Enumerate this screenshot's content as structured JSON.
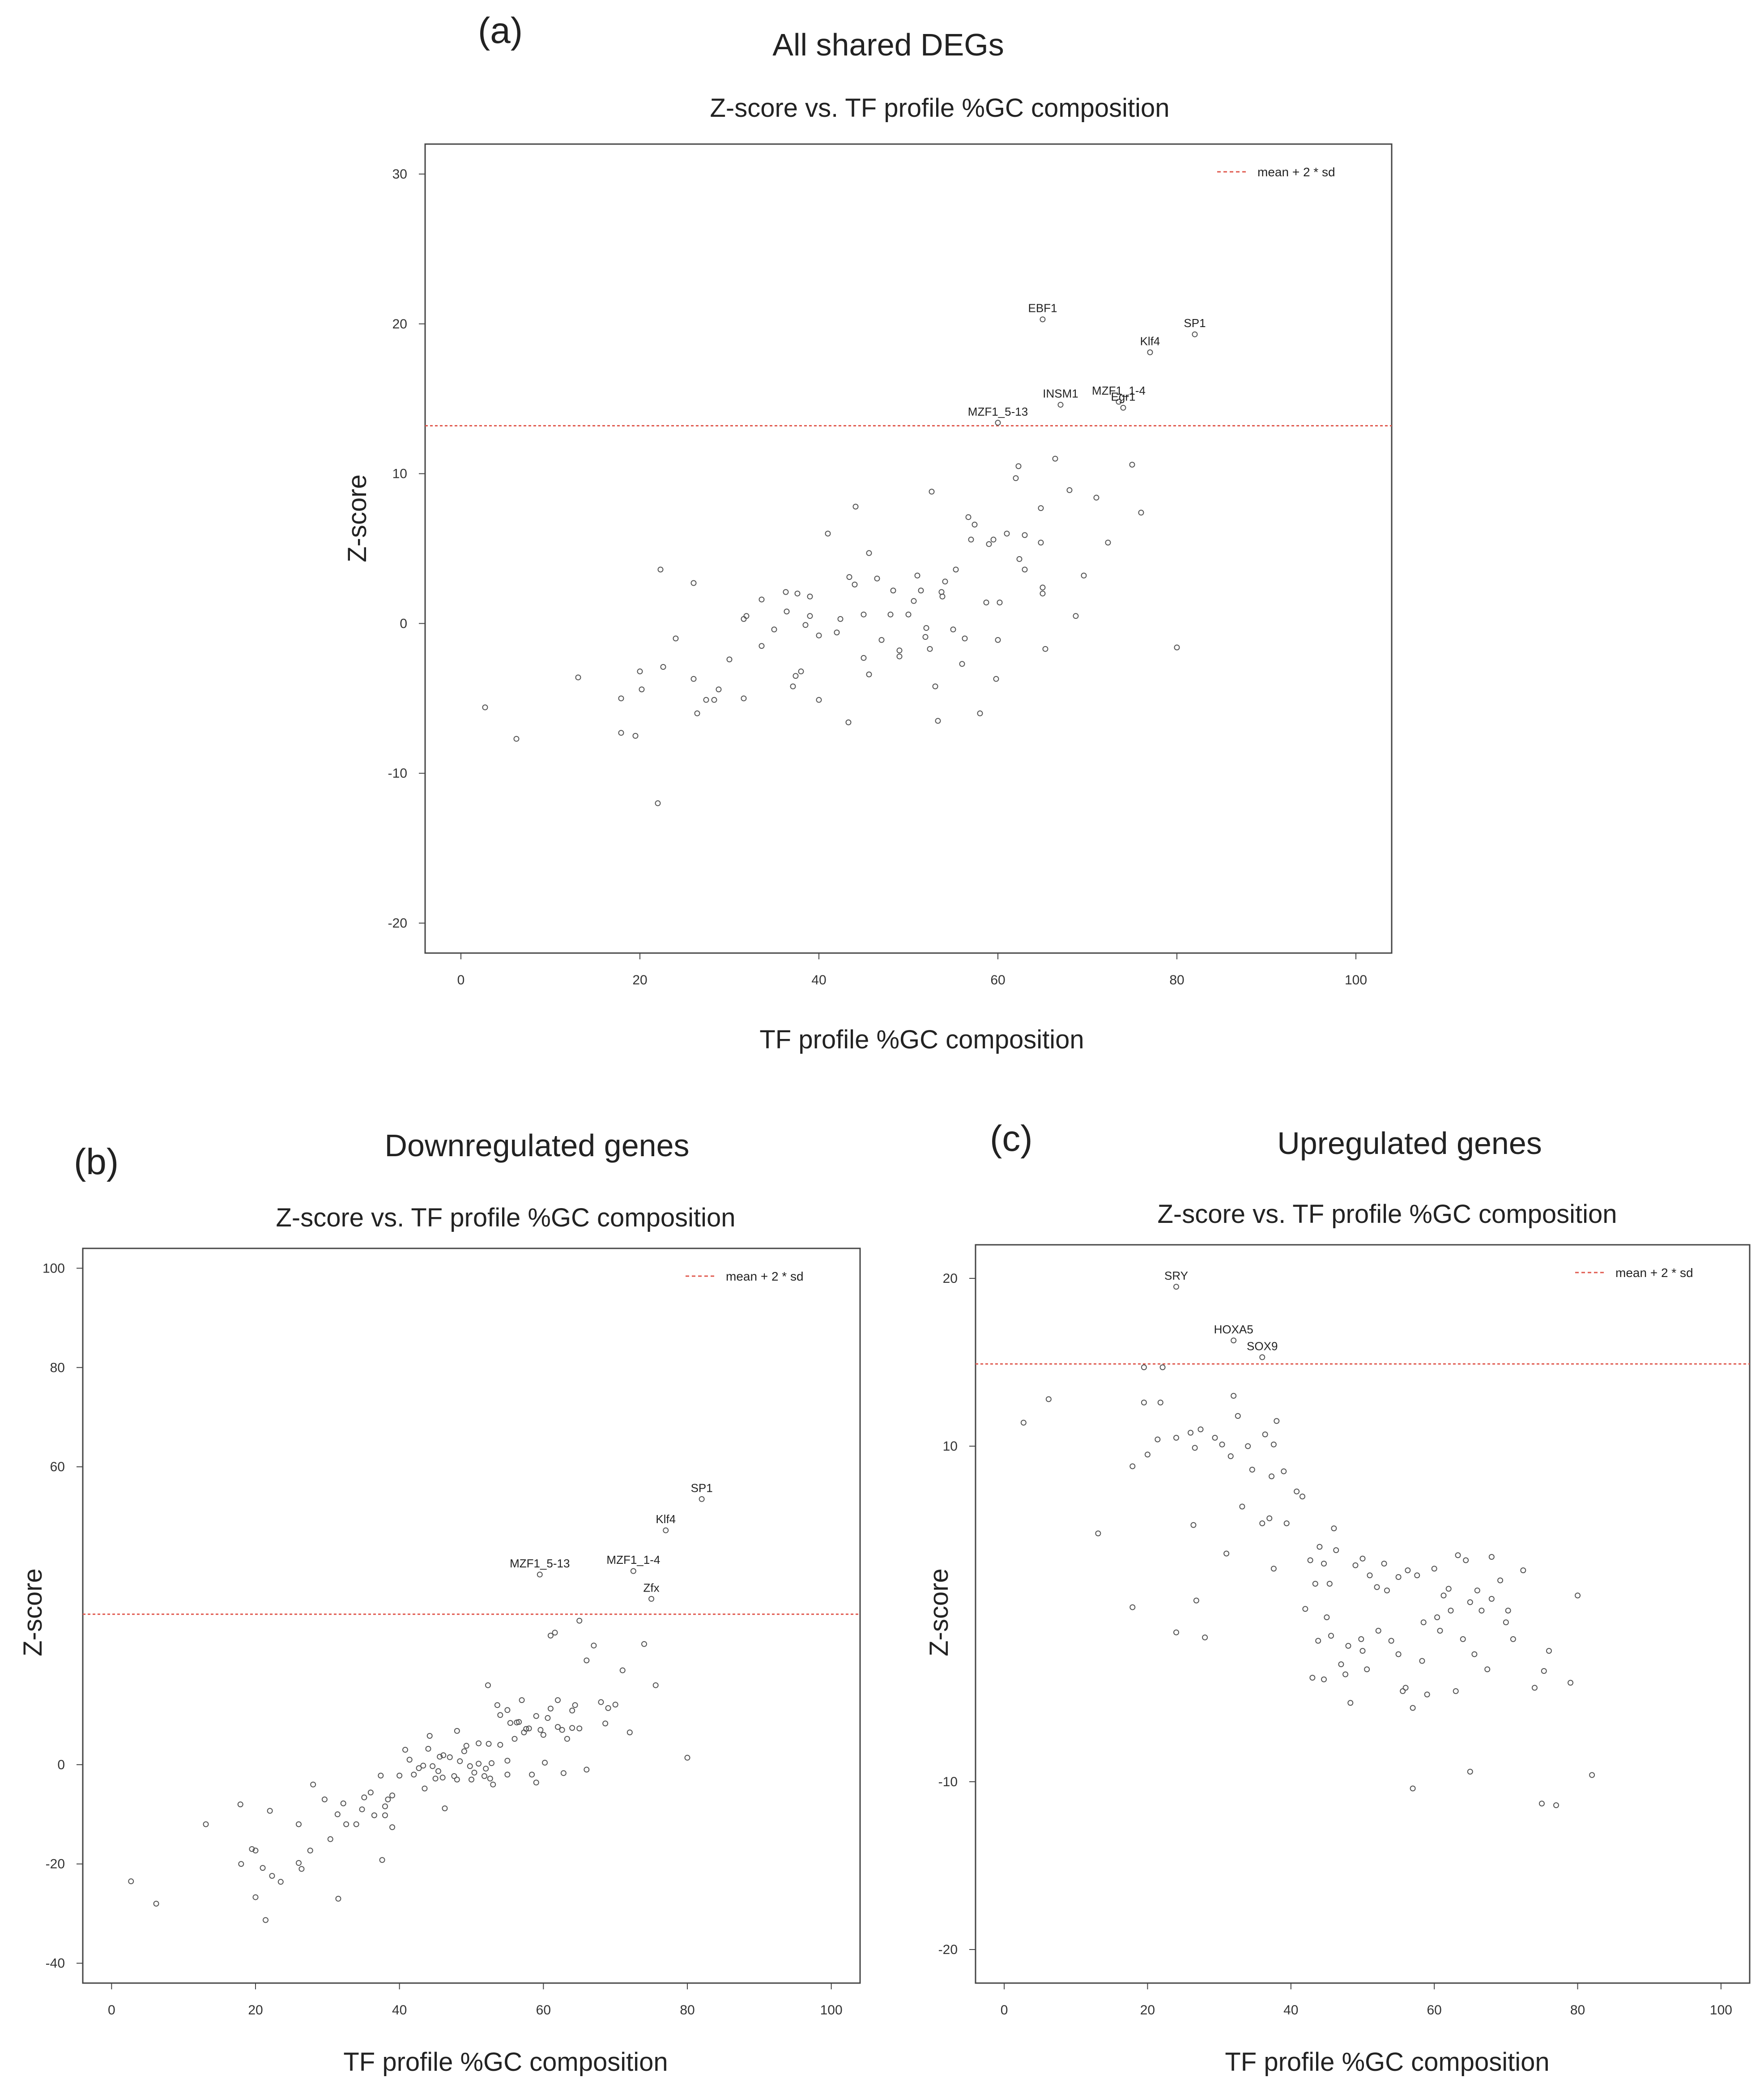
{
  "figure": {
    "panel_a": {
      "letter": "(a)",
      "title": "All shared DEGs"
    },
    "panel_b": {
      "letter": "(b)",
      "title": "Downregulated genes"
    },
    "panel_c": {
      "letter": "(c)",
      "title": "Upregulated genes"
    }
  },
  "colors": {
    "threshold": "#e05a4f",
    "points": "#555555",
    "frame": "#444444"
  },
  "chart_data": [
    {
      "type": "scatter",
      "title": "Z-score vs. TF profile %GC composition",
      "xlabel": "TF profile %GC composition",
      "ylabel": "Z-score",
      "xlim": [
        -4,
        104
      ],
      "ylim": [
        -22,
        32
      ],
      "xticks": [
        0,
        20,
        40,
        60,
        80,
        100
      ],
      "yticks": [
        -20,
        -10,
        0,
        10,
        20,
        30
      ],
      "threshold": 13.2,
      "legend": "mean + 2 * sd",
      "legend_position": "top-right",
      "labeled_points": [
        {
          "label": "EBF1",
          "x": 65,
          "y": 20.3
        },
        {
          "label": "SP1",
          "x": 82,
          "y": 19.3
        },
        {
          "label": "Klf4",
          "x": 77,
          "y": 18.1
        },
        {
          "label": "INSM1",
          "x": 67,
          "y": 14.6
        },
        {
          "label": "MZF1_1-4",
          "x": 73.5,
          "y": 14.8
        },
        {
          "label": "Egr1",
          "x": 74,
          "y": 14.4
        },
        {
          "label": "MZF1_5-13",
          "x": 60,
          "y": 13.4
        }
      ],
      "points": [
        [
          2.7,
          -5.6
        ],
        [
          6.2,
          -7.7
        ],
        [
          13.1,
          -3.6
        ],
        [
          17.9,
          -5
        ],
        [
          17.9,
          -7.3
        ],
        [
          19.5,
          -7.5
        ],
        [
          20.2,
          -4.4
        ],
        [
          20,
          -3.2
        ],
        [
          22.3,
          3.6
        ],
        [
          22,
          -12
        ],
        [
          22.6,
          -2.9
        ],
        [
          24,
          -1
        ],
        [
          26,
          -3.7
        ],
        [
          26,
          2.7
        ],
        [
          26.4,
          -6
        ],
        [
          27.4,
          -5.1
        ],
        [
          28.3,
          -5.1
        ],
        [
          28.8,
          -4.4
        ],
        [
          30,
          -2.4
        ],
        [
          31.6,
          0.3
        ],
        [
          31.6,
          -5
        ],
        [
          31.9,
          0.5
        ],
        [
          33.6,
          -1.5
        ],
        [
          33.6,
          1.6
        ],
        [
          35,
          -0.4
        ],
        [
          36.3,
          2.1
        ],
        [
          36.4,
          0.8
        ],
        [
          37.1,
          -4.2
        ],
        [
          37.4,
          -3.5
        ],
        [
          37.6,
          2
        ],
        [
          38,
          -3.2
        ],
        [
          38.5,
          -0.1
        ],
        [
          39,
          1.8
        ],
        [
          39,
          0.5
        ],
        [
          40,
          -5.1
        ],
        [
          40,
          -0.8
        ],
        [
          41,
          6
        ],
        [
          42,
          -0.6
        ],
        [
          42.4,
          0.3
        ],
        [
          43.3,
          -6.6
        ],
        [
          43.4,
          3.1
        ],
        [
          44,
          2.6
        ],
        [
          44.1,
          7.8
        ],
        [
          45,
          -2.3
        ],
        [
          45.6,
          4.7
        ],
        [
          45,
          0.6
        ],
        [
          45.6,
          -3.4
        ],
        [
          46.5,
          3
        ],
        [
          47,
          -1.1
        ],
        [
          48,
          0.6
        ],
        [
          48.3,
          2.2
        ],
        [
          49,
          -2.2
        ],
        [
          49,
          -1.8
        ],
        [
          50,
          0.6
        ],
        [
          50.6,
          1.5
        ],
        [
          51,
          3.2
        ],
        [
          51.4,
          2.2
        ],
        [
          51.9,
          -0.9
        ],
        [
          52,
          -0.3
        ],
        [
          52.4,
          -1.7
        ],
        [
          52.6,
          8.8
        ],
        [
          53,
          -4.2
        ],
        [
          53.3,
          -6.5
        ],
        [
          53.7,
          2.1
        ],
        [
          53.8,
          1.8
        ],
        [
          54.1,
          2.8
        ],
        [
          55,
          -0.4
        ],
        [
          55.3,
          3.6
        ],
        [
          56,
          -2.7
        ],
        [
          56.3,
          -1
        ],
        [
          56.7,
          7.1
        ],
        [
          57,
          5.6
        ],
        [
          57.4,
          6.6
        ],
        [
          58,
          -6
        ],
        [
          58.7,
          1.4
        ],
        [
          59,
          5.3
        ],
        [
          59.5,
          5.6
        ],
        [
          59.8,
          -3.7
        ],
        [
          60,
          -1.1
        ],
        [
          60.2,
          1.4
        ],
        [
          61,
          6
        ],
        [
          62,
          9.7
        ],
        [
          62.3,
          10.5
        ],
        [
          62.4,
          4.3
        ],
        [
          63,
          5.9
        ],
        [
          63,
          3.6
        ],
        [
          64.8,
          5.4
        ],
        [
          64.8,
          7.7
        ],
        [
          65,
          2.4
        ],
        [
          65,
          2
        ],
        [
          65.3,
          -1.7
        ],
        [
          66.4,
          11
        ],
        [
          68,
          8.9
        ],
        [
          68.7,
          0.5
        ],
        [
          69.6,
          3.2
        ],
        [
          71,
          8.4
        ],
        [
          72.3,
          5.4
        ],
        [
          75,
          10.6
        ],
        [
          76,
          7.4
        ],
        [
          80,
          -1.6
        ]
      ]
    },
    {
      "type": "scatter",
      "title": "Z-score vs. TF profile %GC composition",
      "xlabel": "TF profile %GC composition",
      "ylabel": "Z-score",
      "xlim": [
        -4,
        104
      ],
      "ylim": [
        -44,
        104
      ],
      "xticks": [
        0,
        20,
        40,
        60,
        80,
        100
      ],
      "yticks": [
        -40,
        -20,
        0,
        60,
        80,
        100
      ],
      "threshold": 30.3,
      "legend": "mean + 2 * sd",
      "legend_position": "top-right",
      "labeled_points": [
        {
          "label": "SP1",
          "x": 82,
          "y": 53.5
        },
        {
          "label": "Klf4",
          "x": 77,
          "y": 47.2
        },
        {
          "label": "MZF1_5-13",
          "x": 59.5,
          "y": 38.3
        },
        {
          "label": "MZF1_1-4",
          "x": 72.5,
          "y": 39
        },
        {
          "label": "Zfx",
          "x": 75,
          "y": 33.4
        }
      ],
      "points": [
        [
          2.7,
          -23.5
        ],
        [
          6.2,
          -28
        ],
        [
          13.1,
          -12
        ],
        [
          17.9,
          -8
        ],
        [
          18,
          -20
        ],
        [
          19.5,
          -17
        ],
        [
          20,
          -17.3
        ],
        [
          20,
          -26.7
        ],
        [
          21,
          -20.8
        ],
        [
          21.4,
          -31.3
        ],
        [
          22,
          -9.3
        ],
        [
          22.3,
          -22.4
        ],
        [
          23.5,
          -23.6
        ],
        [
          26,
          -12
        ],
        [
          26,
          -19.8
        ],
        [
          26.4,
          -21
        ],
        [
          27.6,
          -17.3
        ],
        [
          28,
          -4
        ],
        [
          29.6,
          -7
        ],
        [
          30.4,
          -15
        ],
        [
          31.4,
          -10
        ],
        [
          31.5,
          -27
        ],
        [
          32.2,
          -7.8
        ],
        [
          32.6,
          -12
        ],
        [
          34,
          -12
        ],
        [
          34.8,
          -9
        ],
        [
          35.1,
          -6.6
        ],
        [
          36,
          -5.6
        ],
        [
          36.5,
          -10.2
        ],
        [
          37.4,
          -2.2
        ],
        [
          37.6,
          -19.2
        ],
        [
          38,
          -8.4
        ],
        [
          38,
          -10.2
        ],
        [
          38.4,
          -7
        ],
        [
          39,
          -6.2
        ],
        [
          39,
          -12.6
        ],
        [
          40,
          -2.2
        ],
        [
          40.8,
          3
        ],
        [
          41.4,
          1
        ],
        [
          42,
          -2
        ],
        [
          42.7,
          -0.7
        ],
        [
          43.3,
          -0.2
        ],
        [
          43.5,
          -4.8
        ],
        [
          44,
          3.2
        ],
        [
          44.2,
          5.8
        ],
        [
          44.6,
          -0.3
        ],
        [
          45,
          -2.8
        ],
        [
          45.4,
          -1.3
        ],
        [
          45.6,
          1.6
        ],
        [
          46,
          -2.6
        ],
        [
          46.1,
          1.9
        ],
        [
          46.3,
          -8.8
        ],
        [
          47,
          1.5
        ],
        [
          47.6,
          -2.3
        ],
        [
          48,
          6.8
        ],
        [
          48,
          -3
        ],
        [
          48.4,
          0.7
        ],
        [
          49,
          2.7
        ],
        [
          49.3,
          3.8
        ],
        [
          49.8,
          -0.3
        ],
        [
          50,
          -3
        ],
        [
          50.4,
          -1.6
        ],
        [
          51,
          0.2
        ],
        [
          51,
          4.3
        ],
        [
          51.8,
          -2.3
        ],
        [
          52,
          -0.8
        ],
        [
          52.3,
          16
        ],
        [
          52.4,
          4.2
        ],
        [
          52.6,
          -2.8
        ],
        [
          52.8,
          0.3
        ],
        [
          53,
          -4
        ],
        [
          53.6,
          12
        ],
        [
          54,
          10
        ],
        [
          54,
          4
        ],
        [
          55,
          -2
        ],
        [
          55,
          11
        ],
        [
          55,
          0.8
        ],
        [
          55.4,
          8.4
        ],
        [
          56,
          5.2
        ],
        [
          56.3,
          8.5
        ],
        [
          56.6,
          8.6
        ],
        [
          57,
          13
        ],
        [
          57.3,
          6.5
        ],
        [
          57.6,
          7.2
        ],
        [
          58,
          7.3
        ],
        [
          58.4,
          -2
        ],
        [
          59,
          9.8
        ],
        [
          59,
          -3.6
        ],
        [
          59.6,
          7
        ],
        [
          60,
          6
        ],
        [
          60.2,
          0.4
        ],
        [
          60.6,
          9.4
        ],
        [
          61,
          26
        ],
        [
          61,
          11.3
        ],
        [
          61.6,
          26.6
        ],
        [
          62,
          13
        ],
        [
          62,
          7.6
        ],
        [
          62.6,
          7
        ],
        [
          62.8,
          -1.7
        ],
        [
          63.3,
          5.2
        ],
        [
          64,
          7.4
        ],
        [
          64,
          10.9
        ],
        [
          64.4,
          12
        ],
        [
          65,
          29
        ],
        [
          65,
          7.3
        ],
        [
          66,
          21
        ],
        [
          66,
          -1
        ],
        [
          67,
          24
        ],
        [
          68,
          12.6
        ],
        [
          68.6,
          8.3
        ],
        [
          69,
          11.4
        ],
        [
          70,
          12.1
        ],
        [
          71,
          19
        ],
        [
          72,
          6.5
        ],
        [
          74,
          24.3
        ],
        [
          75.6,
          16
        ],
        [
          80,
          1.4
        ]
      ]
    },
    {
      "type": "scatter",
      "title": "Z-score vs. TF profile %GC composition",
      "xlabel": "TF profile %GC composition",
      "ylabel": "Z-score",
      "xlim": [
        -4,
        104
      ],
      "ylim": [
        -22,
        22
      ],
      "xticks": [
        0,
        20,
        40,
        60,
        80,
        100
      ],
      "yticks": [
        -20,
        -10,
        10,
        20
      ],
      "threshold": 14.9,
      "legend": "mean + 2 * sd",
      "legend_position": "top-right",
      "labeled_points": [
        {
          "label": "SRY",
          "x": 24,
          "y": 19.5
        },
        {
          "label": "HOXA5",
          "x": 32,
          "y": 16.3
        },
        {
          "label": "SOX9",
          "x": 36,
          "y": 15.3
        }
      ],
      "points": [
        [
          2.7,
          11.4
        ],
        [
          6.2,
          12.8
        ],
        [
          13.1,
          4.8
        ],
        [
          17.9,
          8.8
        ],
        [
          17.9,
          0.4
        ],
        [
          19.5,
          12.6
        ],
        [
          19.5,
          14.7
        ],
        [
          20,
          9.5
        ],
        [
          21.4,
          10.4
        ],
        [
          21.8,
          12.6
        ],
        [
          22.1,
          14.7
        ],
        [
          24,
          10.5
        ],
        [
          24,
          -1.1
        ],
        [
          26,
          10.8
        ],
        [
          26.4,
          5.3
        ],
        [
          26.6,
          9.9
        ],
        [
          26.8,
          0.8
        ],
        [
          27.4,
          11
        ],
        [
          28,
          -1.4
        ],
        [
          29.4,
          10.5
        ],
        [
          30.4,
          10.1
        ],
        [
          31,
          3.6
        ],
        [
          31.6,
          9.4
        ],
        [
          32,
          13
        ],
        [
          32.6,
          11.8
        ],
        [
          33.2,
          6.4
        ],
        [
          34,
          10
        ],
        [
          34.6,
          8.6
        ],
        [
          36,
          5.4
        ],
        [
          36.4,
          10.7
        ],
        [
          37,
          5.7
        ],
        [
          37.3,
          8.2
        ],
        [
          37.6,
          2.7
        ],
        [
          37.6,
          10.1
        ],
        [
          38,
          11.5
        ],
        [
          39,
          8.5
        ],
        [
          39.4,
          5.4
        ],
        [
          40.8,
          7.3
        ],
        [
          41.6,
          7
        ],
        [
          42,
          0.3
        ],
        [
          42.7,
          3.2
        ],
        [
          43,
          -3.8
        ],
        [
          43.4,
          1.8
        ],
        [
          43.8,
          -1.6
        ],
        [
          44,
          4
        ],
        [
          44.6,
          -3.9
        ],
        [
          44.6,
          3
        ],
        [
          45,
          -0.2
        ],
        [
          45.4,
          1.8
        ],
        [
          45.6,
          -1.3
        ],
        [
          46,
          5.1
        ],
        [
          46.3,
          3.8
        ],
        [
          47,
          -3
        ],
        [
          47.6,
          -3.6
        ],
        [
          48,
          -1.9
        ],
        [
          48.3,
          -5.3
        ],
        [
          49,
          2.9
        ],
        [
          49.8,
          -1.5
        ],
        [
          50,
          -2.2
        ],
        [
          50,
          3.3
        ],
        [
          50.6,
          -3.3
        ],
        [
          51,
          2.3
        ],
        [
          52,
          1.6
        ],
        [
          52.2,
          -1
        ],
        [
          53,
          3
        ],
        [
          53.4,
          1.4
        ],
        [
          54,
          -1.6
        ],
        [
          55,
          2.2
        ],
        [
          55,
          -2.4
        ],
        [
          55.6,
          -4.6
        ],
        [
          56,
          -4.4
        ],
        [
          56.3,
          2.6
        ],
        [
          57,
          -5.6
        ],
        [
          57.6,
          2.3
        ],
        [
          58.3,
          -2.8
        ],
        [
          58.5,
          -0.5
        ],
        [
          59,
          -4.8
        ],
        [
          60,
          2.7
        ],
        [
          60.4,
          -0.2
        ],
        [
          60.8,
          -1
        ],
        [
          61.3,
          1.1
        ],
        [
          62,
          1.5
        ],
        [
          62.3,
          0.2
        ],
        [
          63,
          -4.6
        ],
        [
          63.3,
          3.5
        ],
        [
          64,
          -1.5
        ],
        [
          64.4,
          3.2
        ],
        [
          65,
          0.7
        ],
        [
          65.6,
          -2.4
        ],
        [
          66,
          1.4
        ],
        [
          66.6,
          0.2
        ],
        [
          67.4,
          -3.3
        ],
        [
          68,
          0.9
        ],
        [
          68,
          3.4
        ],
        [
          69.2,
          2
        ],
        [
          70,
          -0.5
        ],
        [
          70.3,
          0.2
        ],
        [
          71,
          -1.5
        ],
        [
          72.4,
          2.6
        ],
        [
          74,
          -4.4
        ],
        [
          75.3,
          -3.4
        ],
        [
          76,
          -2.2
        ],
        [
          79,
          -4.1
        ],
        [
          80,
          1.1
        ],
        [
          82,
          -9.6
        ],
        [
          65,
          -9.4
        ],
        [
          57,
          -10.4
        ],
        [
          75,
          -11.3
        ],
        [
          77,
          -11.4
        ]
      ]
    }
  ]
}
